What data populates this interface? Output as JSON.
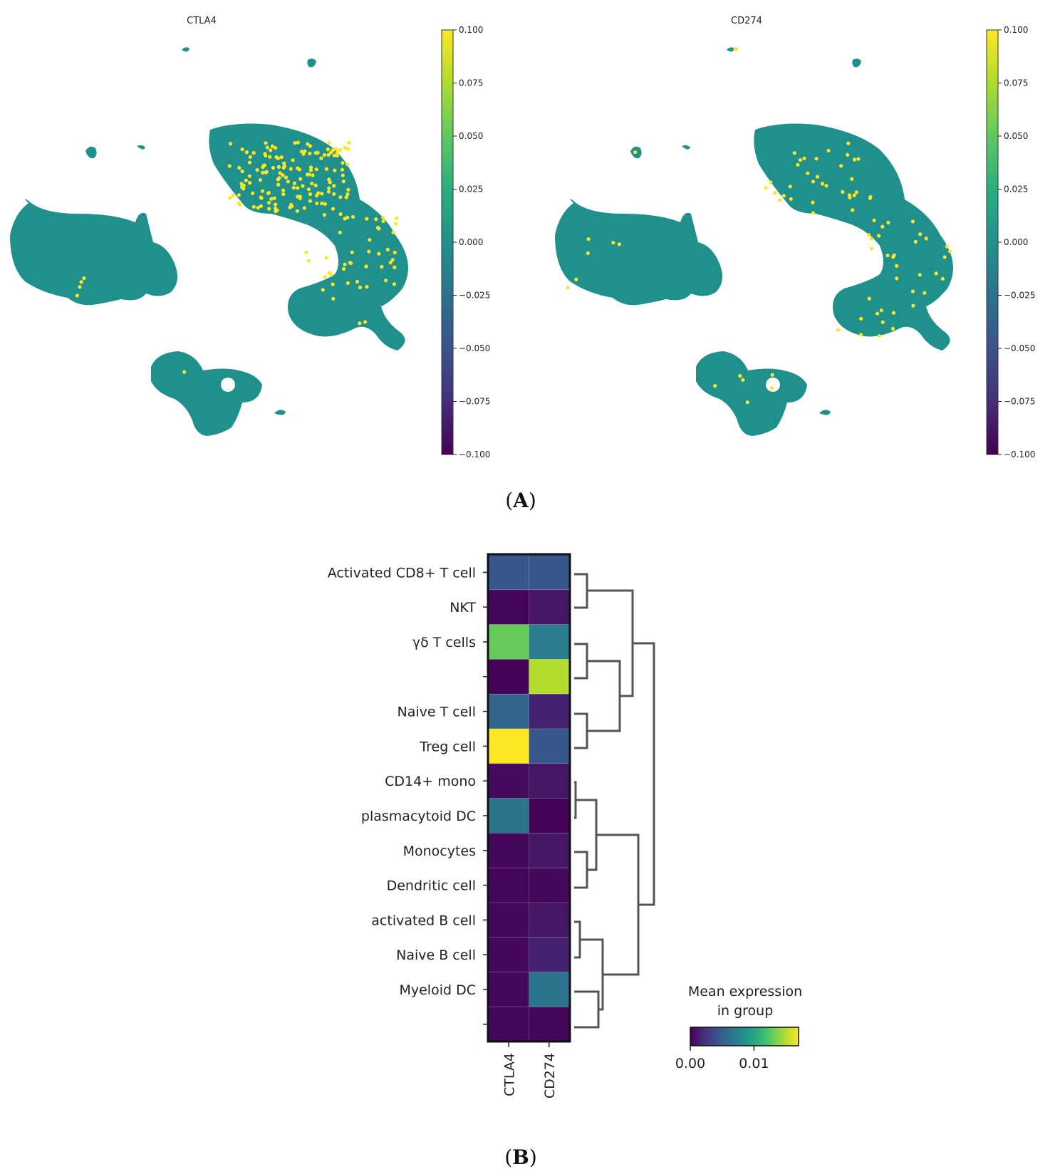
{
  "figure": {
    "panel_a_label": "A",
    "panel_b_label": "B"
  },
  "chart_data": [
    {
      "type": "scatter",
      "title": "CTLA4",
      "colorbar": {
        "min": -0.1,
        "max": 0.1,
        "ticks": [
          "0.100",
          "0.075",
          "0.050",
          "0.025",
          "0.000",
          "−0.025",
          "−0.050",
          "−0.075",
          "−0.100"
        ]
      },
      "base_color": "#20908c",
      "highlight_color": "#fde725",
      "highlight_density": "high"
    },
    {
      "type": "scatter",
      "title": "CD274",
      "colorbar": {
        "min": -0.1,
        "max": 0.1,
        "ticks": [
          "0.100",
          "0.075",
          "0.050",
          "0.025",
          "0.000",
          "−0.025",
          "−0.050",
          "−0.075",
          "−0.100"
        ]
      },
      "base_color": "#20908c",
      "highlight_color": "#fde725",
      "highlight_density": "low"
    },
    {
      "type": "heatmap",
      "columns": [
        "CTLA4",
        "CD274"
      ],
      "rows": [
        "Activated CD8+ T cell",
        "NKT",
        "γδ T cells",
        "",
        "Naive T cell",
        "Treg cell",
        "CD14+ mono",
        "plasmacytoid DC",
        "Monocytes",
        "Dendritic cell",
        "activated B cell",
        "Naive B cell",
        "Myeloid DC",
        ""
      ],
      "values": [
        [
          0.0045,
          0.0045
        ],
        [
          0.0002,
          0.001
        ],
        [
          0.013,
          0.007
        ],
        [
          0.0001,
          0.015
        ],
        [
          0.0055,
          0.0015
        ],
        [
          0.017,
          0.0045
        ],
        [
          0.0005,
          0.001
        ],
        [
          0.0065,
          0.0001
        ],
        [
          0.0003,
          0.001
        ],
        [
          0.0002,
          0.0003
        ],
        [
          0.0004,
          0.001
        ],
        [
          0.0003,
          0.0015
        ],
        [
          0.0003,
          0.0065
        ],
        [
          0.0002,
          0.0002
        ]
      ],
      "colorscale": "viridis",
      "vmin": 0.0,
      "vmax": 0.017,
      "legend_title_line1": "Mean expression",
      "legend_title_line2": "in group",
      "legend_ticks": [
        "0.00",
        "0.01"
      ],
      "legend_tick_values": [
        0.0,
        0.01
      ],
      "dendrogram": "right"
    }
  ]
}
